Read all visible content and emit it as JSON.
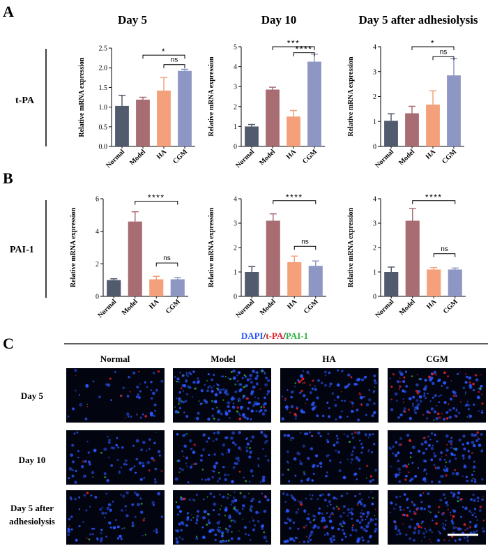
{
  "panel_labels": [
    "A",
    "B",
    "C"
  ],
  "column_titles": [
    "Day 5",
    "Day 10",
    "Day 5 after adhesiolysis"
  ],
  "row_labels": [
    "t-PA",
    "PAI-1"
  ],
  "colors": {
    "Normal": "#525a6e",
    "Model": "#a86d73",
    "HA": "#f4a07b",
    "CGM": "#8e96c3",
    "dapi": "#2a58ff",
    "tpa": "#e0202a",
    "pai1": "#32b041"
  },
  "chart_data": [
    {
      "type": "bar",
      "row": "t-PA",
      "column": "Day 5",
      "categories": [
        "Normal",
        "Model",
        "HA",
        "CGM"
      ],
      "values": [
        1.03,
        1.19,
        1.42,
        1.92
      ],
      "errors": [
        0.27,
        0.06,
        0.33,
        0.04
      ],
      "ylabel": "Relative mRNA expression",
      "ylim": [
        0,
        2.5
      ],
      "yticks": [
        "0.0",
        "0.5",
        "1.0",
        "1.5",
        "2.0",
        "2.5"
      ],
      "significance": [
        {
          "from": "Model",
          "to": "CGM",
          "label": "*",
          "level": 2.32
        },
        {
          "from": "HA",
          "to": "CGM",
          "label": "ns",
          "level": 2.08
        }
      ]
    },
    {
      "type": "bar",
      "row": "t-PA",
      "column": "Day 10",
      "categories": [
        "Normal",
        "Model",
        "HA",
        "CGM"
      ],
      "values": [
        1.0,
        2.85,
        1.5,
        4.25
      ],
      "errors": [
        0.1,
        0.12,
        0.3,
        0.38
      ],
      "ylabel": "Relative mRNA expression",
      "ylim": [
        0,
        5
      ],
      "yticks": [
        "0",
        "1",
        "2",
        "3",
        "4",
        "5"
      ],
      "significance": [
        {
          "from": "Model",
          "to": "CGM",
          "label": "***",
          "level": 5.0
        },
        {
          "from": "HA",
          "to": "CGM",
          "label": "****",
          "level": 4.7
        }
      ]
    },
    {
      "type": "bar",
      "row": "t-PA",
      "column": "Day 5 after adhesiolysis",
      "categories": [
        "Normal",
        "Model",
        "HA",
        "CGM"
      ],
      "values": [
        1.03,
        1.33,
        1.68,
        2.85
      ],
      "errors": [
        0.28,
        0.28,
        0.55,
        0.68
      ],
      "ylabel": "Relative mRNA expression",
      "ylim": [
        0,
        4
      ],
      "yticks": [
        "0",
        "1",
        "2",
        "3",
        "4"
      ],
      "significance": [
        {
          "from": "Model",
          "to": "CGM",
          "label": "*",
          "level": 4.0
        },
        {
          "from": "HA",
          "to": "CGM",
          "label": "ns",
          "level": 3.6
        }
      ]
    },
    {
      "type": "bar",
      "row": "PAI-1",
      "column": "Day 5",
      "categories": [
        "Normal",
        "Model",
        "HA",
        "CGM"
      ],
      "values": [
        1.0,
        4.6,
        1.05,
        1.05
      ],
      "errors": [
        0.08,
        0.6,
        0.18,
        0.1
      ],
      "ylabel": "Relative mRNA expression",
      "ylim": [
        0,
        6
      ],
      "yticks": [
        "0",
        "2",
        "4",
        "6"
      ],
      "significance": [
        {
          "from": "Model",
          "to": "CGM",
          "label": "****",
          "level": 5.85
        },
        {
          "from": "HA",
          "to": "CGM",
          "label": "ns",
          "level": 2.05
        }
      ]
    },
    {
      "type": "bar",
      "row": "PAI-1",
      "column": "Day 10",
      "categories": [
        "Normal",
        "Model",
        "HA",
        "CGM"
      ],
      "values": [
        1.0,
        3.1,
        1.4,
        1.25
      ],
      "errors": [
        0.22,
        0.28,
        0.25,
        0.2
      ],
      "ylabel": "Relative mRNA expression",
      "ylim": [
        0,
        4
      ],
      "yticks": [
        "0",
        "1",
        "2",
        "3",
        "4"
      ],
      "significance": [
        {
          "from": "Model",
          "to": "CGM",
          "label": "****",
          "level": 3.92
        },
        {
          "from": "HA",
          "to": "CGM",
          "label": "ns",
          "level": 2.05
        }
      ]
    },
    {
      "type": "bar",
      "row": "PAI-1",
      "column": "Day 5 after adhesiolysis",
      "categories": [
        "Normal",
        "Model",
        "HA",
        "CGM"
      ],
      "values": [
        1.0,
        3.1,
        1.1,
        1.1
      ],
      "errors": [
        0.2,
        0.5,
        0.08,
        0.06
      ],
      "ylabel": "Relative mRNA expression",
      "ylim": [
        0,
        4
      ],
      "yticks": [
        "0",
        "1",
        "2",
        "3",
        "4"
      ],
      "significance": [
        {
          "from": "Model",
          "to": "CGM",
          "label": "****",
          "level": 3.92
        },
        {
          "from": "HA",
          "to": "CGM",
          "label": "ns",
          "level": 1.75
        }
      ]
    }
  ],
  "stain_legend": [
    {
      "text": "DAPI",
      "color_key": "dapi"
    },
    {
      "text": "/",
      "color_key": null
    },
    {
      "text": "t-PA",
      "color_key": "tpa"
    },
    {
      "text": "/",
      "color_key": null
    },
    {
      "text": "PAI-1",
      "color_key": "pai1"
    }
  ],
  "image_columns": [
    "Normal",
    "Model",
    "HA",
    "CGM"
  ],
  "image_rows": [
    {
      "lines": [
        "Day 5"
      ]
    },
    {
      "lines": [
        "Day 10"
      ]
    },
    {
      "lines": [
        "Day 5 after",
        "adhesiolysis"
      ]
    }
  ],
  "image_panels": [
    [
      {
        "cells": 45,
        "red": 0.22,
        "green": 0.03
      },
      {
        "cells": 160,
        "red": 0.05,
        "green": 0.22
      },
      {
        "cells": 95,
        "red": 0.22,
        "green": 0.03
      },
      {
        "cells": 110,
        "red": 0.35,
        "green": 0.05
      }
    ],
    [
      {
        "cells": 70,
        "red": 0.05,
        "green": 0.05
      },
      {
        "cells": 95,
        "red": 0.05,
        "green": 0.08
      },
      {
        "cells": 90,
        "red": 0.05,
        "green": 0.05
      },
      {
        "cells": 120,
        "red": 0.14,
        "green": 0.05
      }
    ],
    [
      {
        "cells": 75,
        "red": 0.05,
        "green": 0.08
      },
      {
        "cells": 110,
        "red": 0.03,
        "green": 0.28
      },
      {
        "cells": 150,
        "red": 0.08,
        "green": 0.03
      },
      {
        "cells": 120,
        "red": 0.3,
        "green": 0.05
      }
    ]
  ]
}
